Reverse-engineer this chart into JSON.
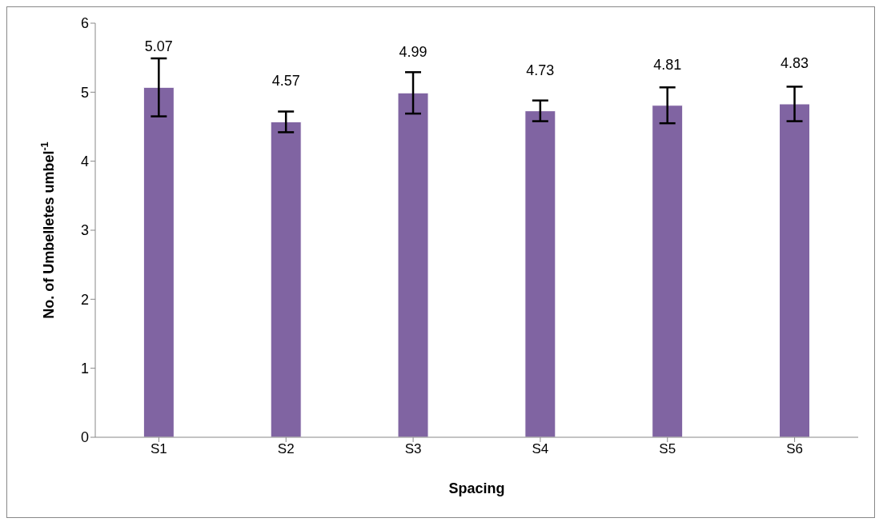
{
  "chart_data": {
    "type": "bar",
    "categories": [
      "S1",
      "S2",
      "S3",
      "S4",
      "S5",
      "S6"
    ],
    "values": [
      5.07,
      4.57,
      4.99,
      4.73,
      4.81,
      4.83
    ],
    "errors": [
      0.42,
      0.15,
      0.3,
      0.15,
      0.26,
      0.25
    ],
    "color": "#8064a2",
    "xlabel": "Spacing",
    "ylabel": "No. of Umbelletes umbel$^{-1}$",
    "ylim": [
      0,
      6
    ],
    "yticks": [
      0,
      1,
      2,
      3,
      4,
      5,
      6
    ],
    "data_labels": true,
    "grid": false
  }
}
